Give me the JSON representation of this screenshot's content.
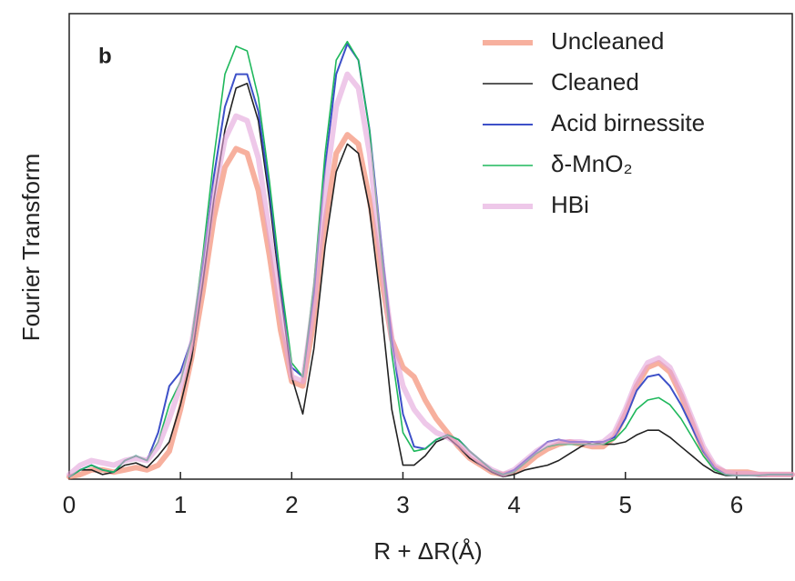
{
  "chart_data": {
    "type": "line",
    "panel_label": "b",
    "xlabel": "R + ΔR(Å)",
    "ylabel": "Fourier Transform",
    "x": [
      0,
      0.1,
      0.2,
      0.3,
      0.4,
      0.5,
      0.6,
      0.7,
      0.8,
      0.9,
      1,
      1.1,
      1.2,
      1.3,
      1.4,
      1.5,
      1.6,
      1.7,
      1.8,
      1.9,
      2,
      2.1,
      2.2,
      2.3,
      2.4,
      2.5,
      2.6,
      2.7,
      2.8,
      2.9,
      3,
      3.1,
      3.2,
      3.3,
      3.4,
      3.5,
      3.6,
      3.7,
      3.8,
      3.9,
      4,
      4.1,
      4.2,
      4.3,
      4.4,
      4.5,
      4.6,
      4.7,
      4.8,
      4.9,
      5,
      5.1,
      5.2,
      5.3,
      5.4,
      5.5,
      5.6,
      5.7,
      5.8,
      5.9,
      6,
      6.1,
      6.2,
      6.3,
      6.4,
      6.5
    ],
    "xlim": [
      0,
      6.5
    ],
    "xticks": [
      0,
      1,
      2,
      3,
      4,
      5,
      6
    ],
    "ylim": [
      0,
      1
    ],
    "series": [
      {
        "name": "Uncleaned",
        "color": "#f27c5e",
        "linewidth": 6,
        "values": [
          0.005,
          0.01,
          0.02,
          0.02,
          0.015,
          0.02,
          0.025,
          0.02,
          0.03,
          0.06,
          0.15,
          0.26,
          0.4,
          0.56,
          0.67,
          0.71,
          0.7,
          0.62,
          0.48,
          0.32,
          0.21,
          0.2,
          0.34,
          0.55,
          0.7,
          0.74,
          0.72,
          0.6,
          0.44,
          0.3,
          0.24,
          0.22,
          0.17,
          0.13,
          0.1,
          0.07,
          0.045,
          0.03,
          0.015,
          0.01,
          0.015,
          0.03,
          0.05,
          0.065,
          0.075,
          0.08,
          0.075,
          0.07,
          0.07,
          0.09,
          0.14,
          0.2,
          0.24,
          0.25,
          0.23,
          0.18,
          0.12,
          0.06,
          0.025,
          0.015,
          0.015,
          0.015,
          0.01,
          0.01,
          0.01,
          0.01
        ]
      },
      {
        "name": "Cleaned",
        "color": "#222222",
        "linewidth": 1.6,
        "values": [
          0.005,
          0.02,
          0.02,
          0.01,
          0.015,
          0.03,
          0.035,
          0.025,
          0.05,
          0.08,
          0.16,
          0.26,
          0.42,
          0.6,
          0.75,
          0.84,
          0.85,
          0.77,
          0.6,
          0.4,
          0.22,
          0.14,
          0.28,
          0.5,
          0.66,
          0.72,
          0.7,
          0.58,
          0.38,
          0.15,
          0.03,
          0.03,
          0.05,
          0.08,
          0.09,
          0.07,
          0.045,
          0.03,
          0.015,
          0.005,
          0.01,
          0.02,
          0.025,
          0.03,
          0.04,
          0.055,
          0.07,
          0.08,
          0.075,
          0.075,
          0.08,
          0.095,
          0.105,
          0.105,
          0.09,
          0.07,
          0.05,
          0.03,
          0.015,
          0.008,
          0.008,
          0.008,
          0.008,
          0.01,
          0.01,
          0.01
        ]
      },
      {
        "name": "Acid birnessite",
        "color": "#3d50c8",
        "linewidth": 2,
        "values": [
          0.005,
          0.02,
          0.03,
          0.02,
          0.015,
          0.04,
          0.05,
          0.04,
          0.1,
          0.2,
          0.23,
          0.3,
          0.46,
          0.65,
          0.8,
          0.87,
          0.87,
          0.79,
          0.62,
          0.42,
          0.24,
          0.22,
          0.4,
          0.67,
          0.87,
          0.935,
          0.9,
          0.75,
          0.52,
          0.3,
          0.14,
          0.07,
          0.065,
          0.085,
          0.095,
          0.085,
          0.06,
          0.04,
          0.02,
          0.01,
          0.02,
          0.04,
          0.06,
          0.08,
          0.085,
          0.08,
          0.08,
          0.08,
          0.08,
          0.09,
          0.13,
          0.19,
          0.22,
          0.225,
          0.2,
          0.16,
          0.11,
          0.06,
          0.025,
          0.01,
          0.008,
          0.008,
          0.008,
          0.01,
          0.01,
          0.01
        ]
      },
      {
        "name": "δ-MnO₂",
        "color": "#1fb85c",
        "linewidth": 1.6,
        "values": [
          0.005,
          0.02,
          0.03,
          0.02,
          0.015,
          0.04,
          0.05,
          0.04,
          0.08,
          0.16,
          0.21,
          0.3,
          0.48,
          0.69,
          0.87,
          0.93,
          0.92,
          0.82,
          0.64,
          0.43,
          0.25,
          0.22,
          0.42,
          0.7,
          0.9,
          0.94,
          0.9,
          0.75,
          0.5,
          0.27,
          0.1,
          0.06,
          0.065,
          0.085,
          0.095,
          0.085,
          0.06,
          0.04,
          0.02,
          0.01,
          0.015,
          0.035,
          0.055,
          0.07,
          0.075,
          0.075,
          0.075,
          0.075,
          0.075,
          0.085,
          0.11,
          0.15,
          0.17,
          0.175,
          0.16,
          0.13,
          0.09,
          0.05,
          0.02,
          0.01,
          0.008,
          0.008,
          0.008,
          0.01,
          0.01,
          0.01
        ]
      },
      {
        "name": "HBi",
        "color": "#e2a4da",
        "linewidth": 6,
        "values": [
          0.01,
          0.03,
          0.04,
          0.035,
          0.03,
          0.04,
          0.045,
          0.04,
          0.07,
          0.13,
          0.2,
          0.29,
          0.44,
          0.61,
          0.73,
          0.78,
          0.77,
          0.69,
          0.53,
          0.36,
          0.22,
          0.21,
          0.38,
          0.62,
          0.8,
          0.87,
          0.84,
          0.7,
          0.48,
          0.3,
          0.2,
          0.15,
          0.12,
          0.1,
          0.09,
          0.075,
          0.055,
          0.035,
          0.02,
          0.01,
          0.02,
          0.04,
          0.06,
          0.075,
          0.08,
          0.08,
          0.08,
          0.075,
          0.08,
          0.1,
          0.15,
          0.21,
          0.25,
          0.26,
          0.24,
          0.19,
          0.13,
          0.07,
          0.03,
          0.015,
          0.012,
          0.012,
          0.01,
          0.01,
          0.01,
          0.01
        ]
      }
    ]
  }
}
